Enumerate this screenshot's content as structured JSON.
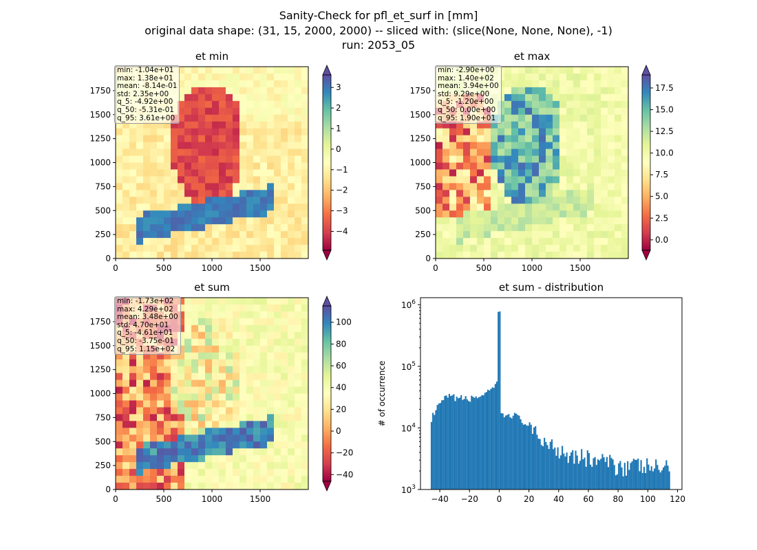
{
  "suptitle": {
    "line1": "Sanity-Check for pfl_et_surf in [mm]",
    "line2": "original data shape: (31, 15, 2000, 2000) -- sliced with: (slice(None, None, None), -1)",
    "line3": "run: 2053_05"
  },
  "chart_data": [
    {
      "type": "heatmap",
      "title": "et min",
      "x_ticks": [
        "0",
        "500",
        "1000",
        "1500"
      ],
      "y_ticks": [
        "0",
        "250",
        "500",
        "750",
        "1000",
        "1250",
        "1500",
        "1750"
      ],
      "xlim": [
        0,
        2000
      ],
      "ylim": [
        0,
        2000
      ],
      "colormap": "Spectral",
      "colorbar": {
        "ticks": [
          "3",
          "2",
          "1",
          "0",
          "−1",
          "−2",
          "−3",
          "−4"
        ],
        "values": [
          3,
          2,
          1,
          0,
          -1,
          -2,
          -3,
          -4
        ],
        "range": [
          -4.92,
          3.61
        ],
        "extend": "both"
      },
      "stats": [
        "min: -1.04e+01",
        "max: 1.38e+01",
        "mean: -8.14e-01",
        "std: 2.35e+00",
        "q_5: -4.92e+00",
        "q_50: -5.31e-01",
        "q_95: 3.61e+00"
      ]
    },
    {
      "type": "heatmap",
      "title": "et max",
      "x_ticks": [
        "0",
        "500",
        "1000",
        "1500"
      ],
      "y_ticks": [
        "0",
        "250",
        "500",
        "750",
        "1000",
        "1250",
        "1500",
        "1750"
      ],
      "xlim": [
        0,
        2000
      ],
      "ylim": [
        0,
        2000
      ],
      "colormap": "Spectral",
      "colorbar": {
        "ticks": [
          "17.5",
          "15.0",
          "12.5",
          "10.0",
          "7.5",
          "5.0",
          "2.5",
          "0.0"
        ],
        "values": [
          17.5,
          15.0,
          12.5,
          10.0,
          7.5,
          5.0,
          2.5,
          0.0
        ],
        "range": [
          -1.2,
          19.0
        ],
        "extend": "both"
      },
      "stats": [
        "min: -2.90e+00",
        "max: 1.40e+02",
        "mean: 3.94e+00",
        "std: 9.29e+00",
        "q_5: -1.20e+00",
        "q_50: 0.00e+00",
        "q_95: 1.90e+01"
      ]
    },
    {
      "type": "heatmap",
      "title": "et sum",
      "x_ticks": [
        "0",
        "500",
        "1000",
        "1500"
      ],
      "y_ticks": [
        "0",
        "250",
        "500",
        "750",
        "1000",
        "1250",
        "1500",
        "1750"
      ],
      "xlim": [
        0,
        2000
      ],
      "ylim": [
        0,
        2000
      ],
      "colormap": "Spectral",
      "colorbar": {
        "ticks": [
          "100",
          "80",
          "60",
          "40",
          "20",
          "0",
          "−20",
          "−40"
        ],
        "values": [
          100,
          80,
          60,
          40,
          20,
          0,
          -20,
          -40
        ],
        "range": [
          -46.1,
          115
        ],
        "extend": "both"
      },
      "stats": [
        "min: -1.73e+02",
        "max: 4.29e+02",
        "mean: 3.48e+00",
        "std: 4.70e+01",
        "q_5: -4.61e+01",
        "q_50: -3.75e-01",
        "q_95: 1.15e+02"
      ]
    },
    {
      "type": "bar",
      "title": "et sum - distribution",
      "ylabel": "# of occurrence",
      "yscale": "log",
      "xlim": [
        -53,
        123
      ],
      "ylim": [
        1000,
        1300000
      ],
      "x_ticks": [
        "−40",
        "−20",
        "0",
        "20",
        "40",
        "60",
        "80",
        "100",
        "120"
      ],
      "x_tick_values": [
        -40,
        -20,
        0,
        20,
        40,
        60,
        80,
        100,
        120
      ],
      "y_ticks": [
        "10",
        "10",
        "10",
        "10"
      ],
      "y_tick_exponents": [
        "3",
        "4",
        "5",
        "6"
      ],
      "y_tick_values": [
        1000,
        10000,
        100000,
        1000000
      ],
      "color": "#1f77b4",
      "bins": {
        "start": -46.1,
        "end": 115,
        "count": 161
      },
      "key_values": [
        {
          "x": -46,
          "y": 14000
        },
        {
          "x": -40,
          "y": 25000
        },
        {
          "x": -35,
          "y": 33000
        },
        {
          "x": -20,
          "y": 30000
        },
        {
          "x": -5,
          "y": 40000
        },
        {
          "x": -1.5,
          "y": 55000
        },
        {
          "x": -0.3,
          "y": 820000
        },
        {
          "x": 0.5,
          "y": 16000
        },
        {
          "x": 10,
          "y": 17000
        },
        {
          "x": 20,
          "y": 11000
        },
        {
          "x": 30,
          "y": 7500
        },
        {
          "x": 40,
          "y": 5500
        },
        {
          "x": 60,
          "y": 3800
        },
        {
          "x": 80,
          "y": 3000
        },
        {
          "x": 100,
          "y": 2800
        },
        {
          "x": 115,
          "y": 2600
        }
      ]
    }
  ]
}
